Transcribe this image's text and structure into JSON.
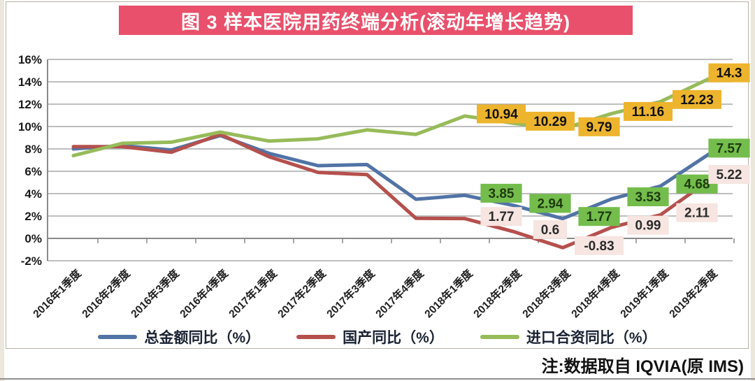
{
  "header": {
    "title": "图 3  样本医院用药终端分析(滚动年增长趋势)"
  },
  "footnote": "注:数据取自 IQVIA(原 IMS)",
  "colors": {
    "banner_bg": "#e9506b",
    "banner_text": "#ffffff",
    "grid": "#a9a9a9",
    "axis": "#8a8a8a",
    "total_line": "#5173a6",
    "domestic_line": "#b5504d",
    "import_line": "#97bb59",
    "total_label_bg": "#74bd4c",
    "domestic_label_bg": "#f6e5e1",
    "import_label_bg": "#edb42e"
  },
  "chart_data": {
    "type": "line",
    "title": "图 3 样本医院用药终端分析(滚动年增长趋势)",
    "note": "注:数据取自 IQVIA(原 IMS)",
    "categories": [
      "2016年1季度",
      "2016年2季度",
      "2016年3季度",
      "2016年4季度",
      "2017年1季度",
      "2017年2季度",
      "2017年3季度",
      "2017年4季度",
      "2018年1季度",
      "2018年2季度",
      "2018年3季度",
      "2018年4季度",
      "2019年1季度",
      "2019年2季度"
    ],
    "series": [
      {
        "name": "总金额同比（%）",
        "color": "#5173a6",
        "values": [
          8.0,
          8.3,
          7.9,
          9.2,
          7.6,
          6.5,
          6.6,
          3.5,
          3.85,
          2.94,
          1.77,
          3.53,
          4.68,
          7.57
        ],
        "label_start": 8,
        "labels": [
          "3.85",
          "2.94",
          "1.77",
          "3.53",
          "4.68",
          "7.57"
        ],
        "label_bg": "#74bd4c",
        "label_color": "#1d3a10"
      },
      {
        "name": "国产同比（%）",
        "color": "#b5504d",
        "values": [
          8.2,
          8.2,
          7.7,
          9.3,
          7.3,
          5.9,
          5.7,
          1.8,
          1.77,
          0.6,
          -0.83,
          0.99,
          2.11,
          5.22
        ],
        "label_start": 8,
        "labels": [
          "1.77",
          "0.6",
          "-0.83",
          "0.99",
          "2.11",
          "5.22"
        ],
        "label_bg": "#f6e5e1",
        "label_color": "#2b2b2b"
      },
      {
        "name": "进口合资同比（%）",
        "color": "#97bb59",
        "values": [
          7.4,
          8.5,
          8.6,
          9.5,
          8.7,
          8.9,
          9.7,
          9.3,
          10.94,
          10.29,
          9.79,
          11.16,
          12.23,
          14.3
        ],
        "label_start": 8,
        "labels": [
          "10.94",
          "10.29",
          "9.79",
          "11.16",
          "12.23",
          "14.3"
        ],
        "label_bg": "#edb42e",
        "label_color": "#111111"
      }
    ],
    "ylim": [
      -2,
      16
    ],
    "ytick_step": 2,
    "yticks": [
      [
        -2,
        "-2%"
      ],
      [
        0,
        "0%"
      ],
      [
        2,
        "2%"
      ],
      [
        4,
        "4%"
      ],
      [
        6,
        "6%"
      ],
      [
        8,
        "8%"
      ],
      [
        10,
        "10%"
      ],
      [
        12,
        "12%"
      ],
      [
        14,
        "14%"
      ],
      [
        16,
        "16%"
      ]
    ],
    "grid": true,
    "legend_position": "bottom"
  }
}
